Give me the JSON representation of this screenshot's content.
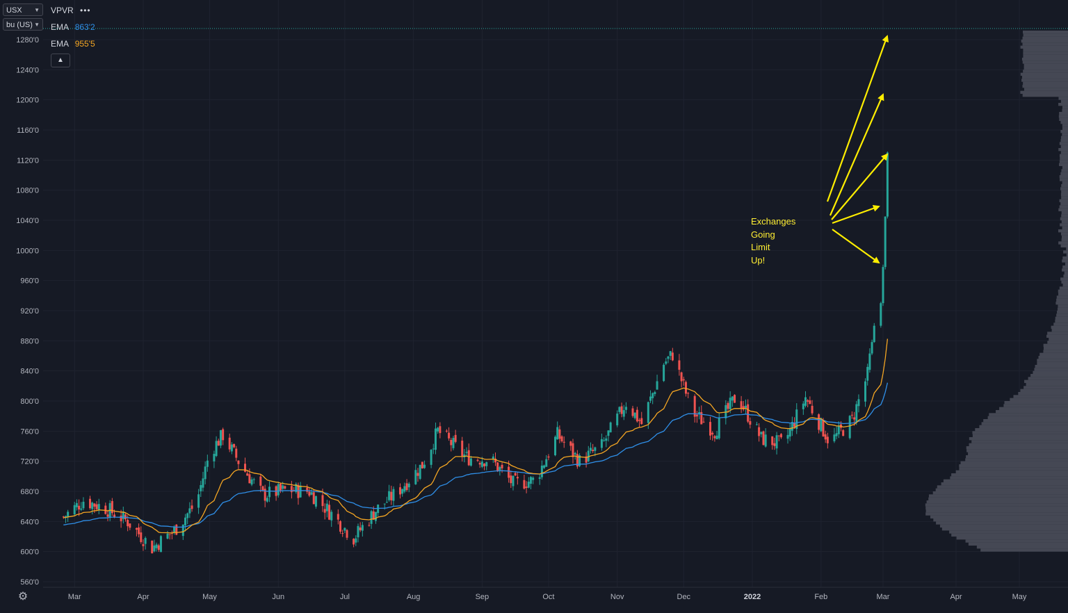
{
  "symbol": "USX",
  "unit": "bu (US)",
  "indicators": [
    {
      "name": "VPVR",
      "more": "•••"
    },
    {
      "name": "EMA",
      "value": "863'2",
      "color": "#2f8fe8"
    },
    {
      "name": "EMA",
      "value": "955'5",
      "color": "#f5a623"
    }
  ],
  "collapse_icon": "chevron-up-icon",
  "settings_icon": "gear-icon",
  "annotation": [
    "Exchanges",
    "Going",
    "Limit",
    "Up!"
  ],
  "colors": {
    "background": "#161a25",
    "up": "#26a69a",
    "down": "#ef5350",
    "ema_fast": "#f5a623",
    "ema_slow": "#2f8fe8",
    "arrows": "#ffee00",
    "volume_profile": "#4a4e5a"
  },
  "chart_data": {
    "type": "candlestick",
    "y_axis": {
      "min": 560,
      "max": 1280,
      "ticks": [
        "560'0",
        "600'0",
        "640'0",
        "680'0",
        "720'0",
        "760'0",
        "800'0",
        "840'0",
        "880'0",
        "920'0",
        "960'0",
        "1000'0",
        "1040'0",
        "1080'0",
        "1120'0",
        "1160'0",
        "1200'0",
        "1240'0",
        "1280'0"
      ]
    },
    "x_axis": {
      "ticks": [
        "Mar",
        "Apr",
        "May",
        "Jun",
        "Jul",
        "Aug",
        "Sep",
        "Oct",
        "Nov",
        "Dec",
        "2022",
        "Feb",
        "Mar",
        "Apr",
        "May"
      ]
    },
    "price_path": [
      {
        "date": "2021-02-24",
        "close": 646
      },
      {
        "date": "2021-03-05",
        "close": 668
      },
      {
        "date": "2021-03-15",
        "close": 658
      },
      {
        "date": "2021-03-25",
        "close": 640
      },
      {
        "date": "2021-04-05",
        "close": 605
      },
      {
        "date": "2021-04-15",
        "close": 628
      },
      {
        "date": "2021-04-25",
        "close": 665
      },
      {
        "date": "2021-05-01",
        "close": 732
      },
      {
        "date": "2021-05-07",
        "close": 755
      },
      {
        "date": "2021-05-15",
        "close": 715
      },
      {
        "date": "2021-05-25",
        "close": 675
      },
      {
        "date": "2021-06-05",
        "close": 682
      },
      {
        "date": "2021-06-15",
        "close": 680
      },
      {
        "date": "2021-06-25",
        "close": 650
      },
      {
        "date": "2021-07-05",
        "close": 618
      },
      {
        "date": "2021-07-15",
        "close": 655
      },
      {
        "date": "2021-07-25",
        "close": 680
      },
      {
        "date": "2021-08-05",
        "close": 715
      },
      {
        "date": "2021-08-12",
        "close": 760
      },
      {
        "date": "2021-08-25",
        "close": 725
      },
      {
        "date": "2021-09-05",
        "close": 722
      },
      {
        "date": "2021-09-15",
        "close": 690
      },
      {
        "date": "2021-09-25",
        "close": 695
      },
      {
        "date": "2021-10-05",
        "close": 755
      },
      {
        "date": "2021-10-15",
        "close": 720
      },
      {
        "date": "2021-10-25",
        "close": 740
      },
      {
        "date": "2021-11-05",
        "close": 798
      },
      {
        "date": "2021-11-12",
        "close": 770
      },
      {
        "date": "2021-11-22",
        "close": 850
      },
      {
        "date": "2021-11-26",
        "close": 862
      },
      {
        "date": "2021-12-05",
        "close": 785
      },
      {
        "date": "2021-12-15",
        "close": 760
      },
      {
        "date": "2021-12-25",
        "close": 808
      },
      {
        "date": "2022-01-05",
        "close": 750
      },
      {
        "date": "2022-01-15",
        "close": 742
      },
      {
        "date": "2022-01-25",
        "close": 805
      },
      {
        "date": "2022-02-05",
        "close": 745
      },
      {
        "date": "2022-02-15",
        "close": 775
      },
      {
        "date": "2022-02-22",
        "close": 835
      },
      {
        "date": "2022-02-25",
        "close": 900
      },
      {
        "date": "2022-02-28",
        "close": 930
      },
      {
        "date": "2022-03-01",
        "close": 978
      },
      {
        "date": "2022-03-02",
        "close": 1045
      },
      {
        "date": "2022-03-03",
        "close": 1130
      }
    ],
    "ema": [
      {
        "value_label": "863'2",
        "color": "#2f8fe8"
      },
      {
        "value_label": "955'5",
        "color": "#f5a623"
      }
    ],
    "annotation": "Exchanges Going Limit Up!"
  }
}
